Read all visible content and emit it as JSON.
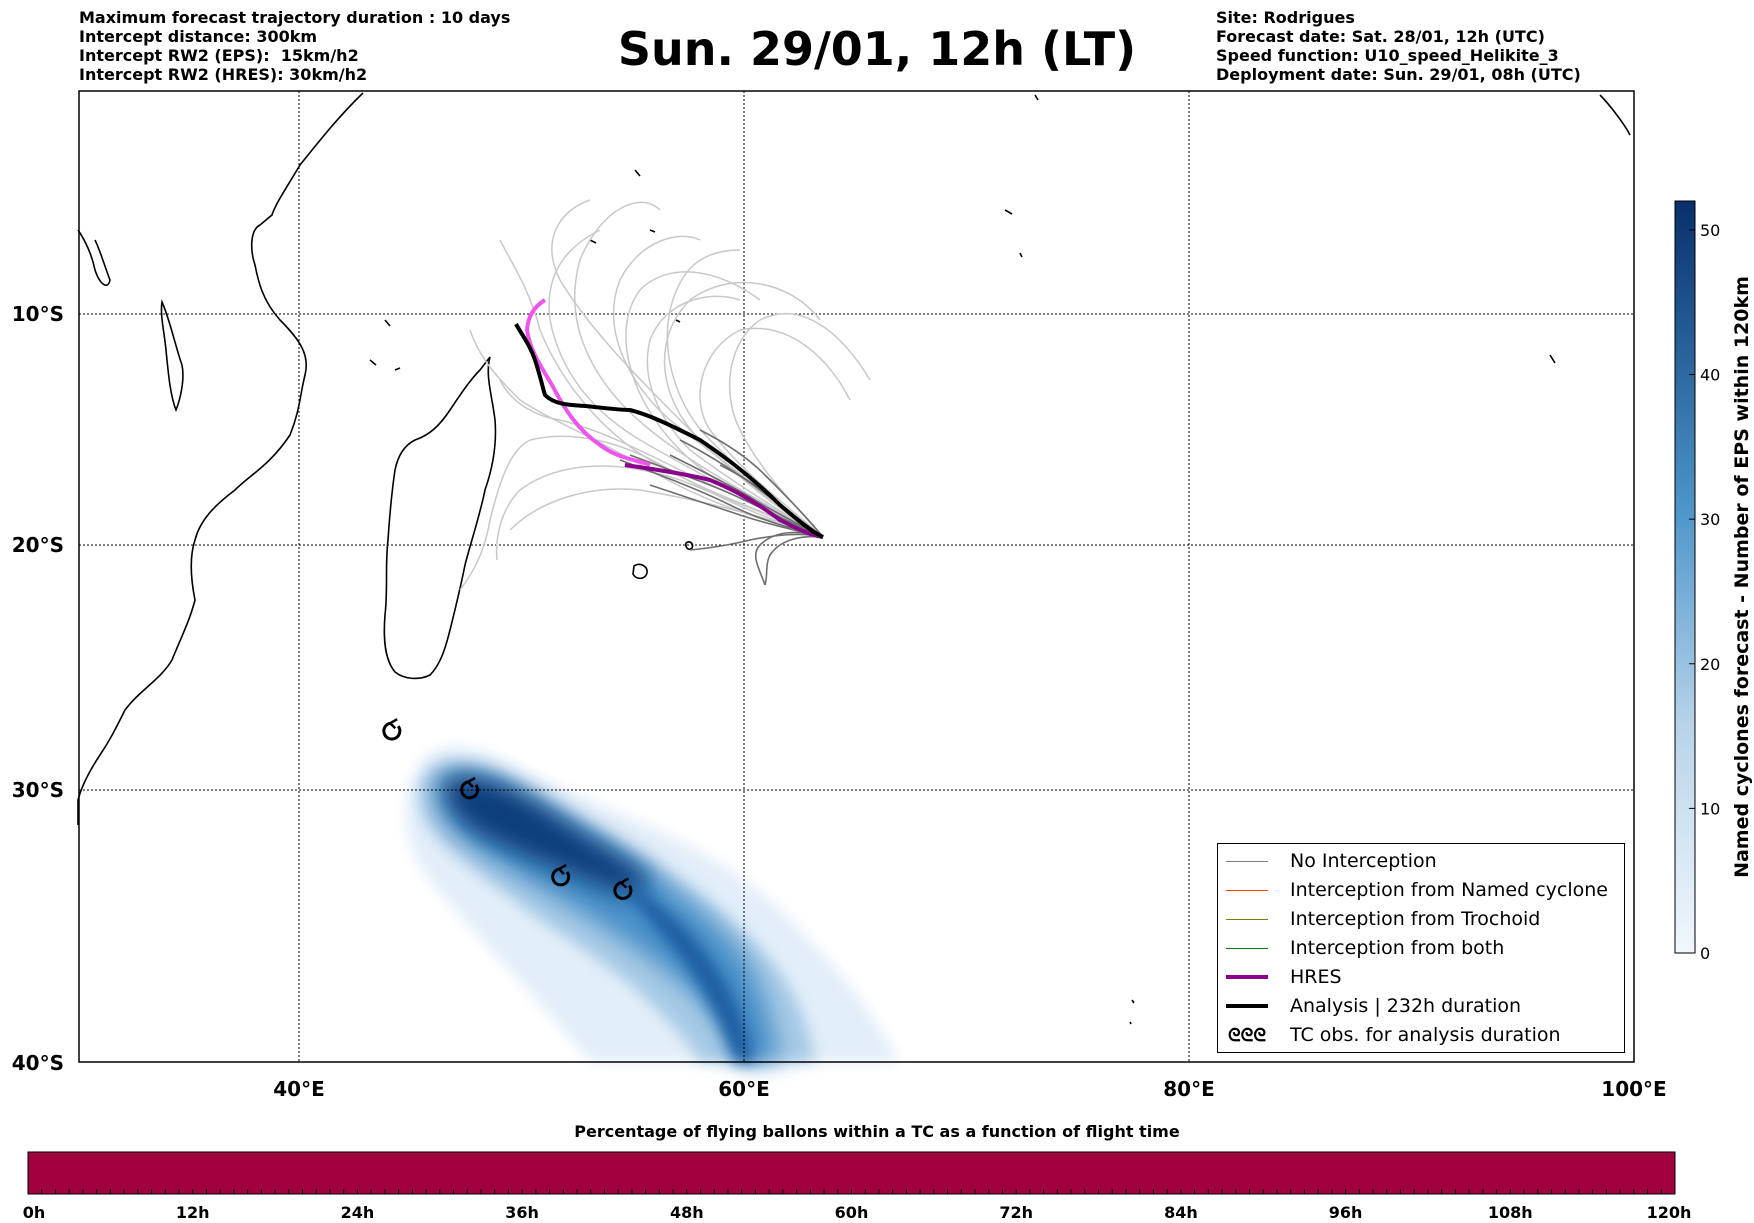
{
  "header_left": [
    "Maximum forecast trajectory duration : 10 days",
    "Intercept distance: 300km",
    "Intercept RW2 (EPS):  15km/h2",
    "Intercept RW2 (HRES): 30km/h2"
  ],
  "header_right": [
    "Site: Rodrigues",
    "Forecast date: Sat. 28/01, 12h (UTC)",
    "Speed function: U10_speed_Helikite_3",
    "Deployment date: Sun. 29/01, 08h (UTC)"
  ],
  "title": "Sun. 29/01, 12h (LT)",
  "map": {
    "lon_ticks": [
      "40°E",
      "60°E",
      "80°E",
      "100°E"
    ],
    "lat_ticks": [
      "10°S",
      "20°S",
      "30°S",
      "40°S"
    ],
    "lon_range": [
      30,
      100
    ],
    "lat_range": [
      -40,
      0
    ]
  },
  "legend": [
    {
      "label": "No Interception",
      "color": "#808080"
    },
    {
      "label": "Interception from Named cyclone",
      "color": "#ff4500"
    },
    {
      "label": "Interception from Trochoid",
      "color": "#808000"
    },
    {
      "label": "Interception from both",
      "color": "#008000"
    },
    {
      "label": "HRES",
      "color": "#8b008b"
    },
    {
      "label": "Analysis | 232h duration",
      "color": "#000000"
    },
    {
      "label": "TC obs. for analysis duration",
      "symbol": "ᘓᘓᘓ"
    }
  ],
  "colorbar_right": {
    "label": "Named cyclones forecast - Number of EPS within 120km",
    "ticks": [
      "0",
      "10",
      "20",
      "30",
      "40",
      "50"
    ],
    "max": 52,
    "color_low": "#e9f2fb",
    "color_high": "#08306b"
  },
  "colorbar_bottom": {
    "title": "Percentage of flying ballons within a TC as a function of flight time",
    "ticks": [
      "0h",
      "12h",
      "24h",
      "36h",
      "48h",
      "60h",
      "72h",
      "84h",
      "96h",
      "108h",
      "120h"
    ],
    "fill_color": "#a1003f"
  },
  "tc_observations": [
    {
      "lon": 44.1,
      "lat": -27.6
    },
    {
      "lon": 47.6,
      "lat": -30.0
    },
    {
      "lon": 51.7,
      "lat": -33.2
    },
    {
      "lon": 54.5,
      "lat": -33.7
    }
  ]
}
